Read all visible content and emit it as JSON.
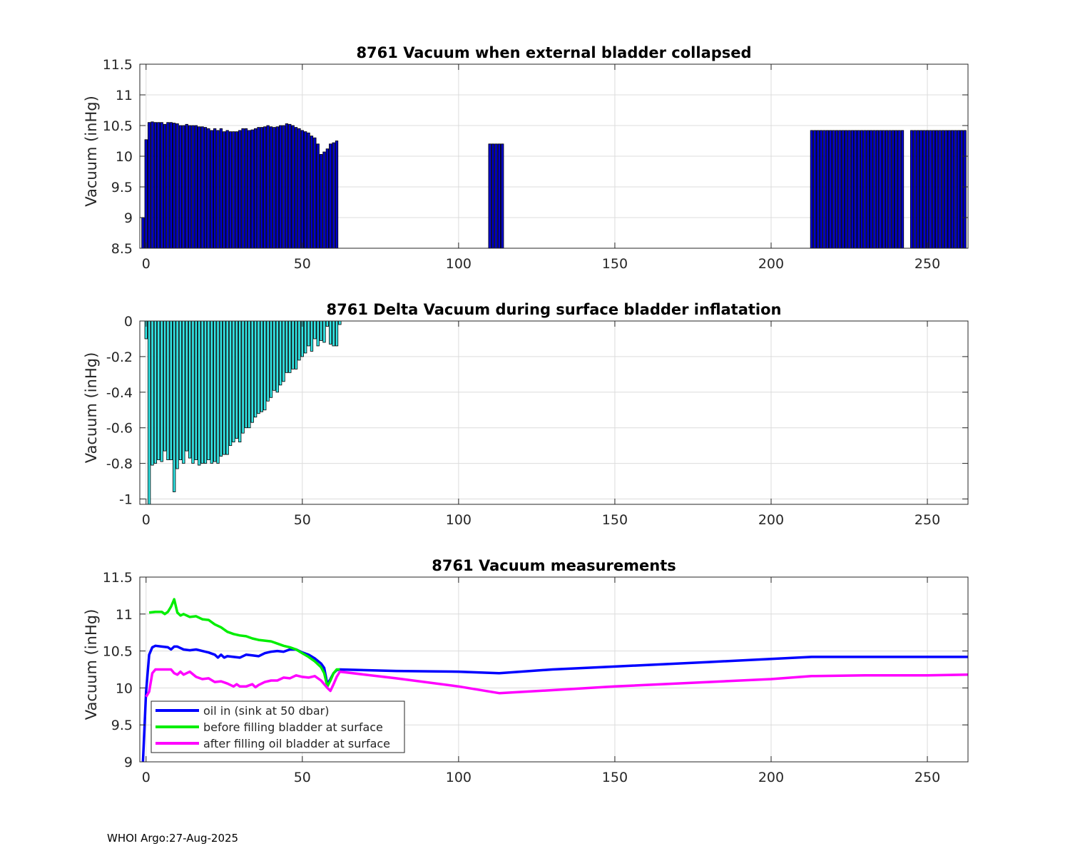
{
  "chart_data": [
    {
      "type": "bar",
      "title": "8761 Vacuum when external bladder collapsed",
      "xlabel": "",
      "ylabel": "Vacuum (inHg)",
      "xlim": [
        -2,
        263
      ],
      "ylim": [
        8.5,
        11.5
      ],
      "xticks": [
        0,
        50,
        100,
        150,
        200,
        250
      ],
      "yticks": [
        8.5,
        9,
        9.5,
        10,
        10.5,
        11,
        11.5
      ],
      "grid": true,
      "color": "#0000cc",
      "segments": [
        {
          "x_start": -1,
          "values": [
            9.0,
            10.27,
            10.55,
            10.56,
            10.55,
            10.55,
            10.55,
            10.52,
            10.55,
            10.55,
            10.54,
            10.53,
            10.5,
            10.5,
            10.52,
            10.5,
            10.5,
            10.5,
            10.48,
            10.48,
            10.47,
            10.45,
            10.42,
            10.45,
            10.42,
            10.45,
            10.4,
            10.42,
            10.4,
            10.4,
            10.4,
            10.42,
            10.45,
            10.45,
            10.42,
            10.43,
            10.45,
            10.47,
            10.47,
            10.48,
            10.5,
            10.48,
            10.47,
            10.48,
            10.5,
            10.5,
            10.53,
            10.52,
            10.5,
            10.47,
            10.45,
            10.42,
            10.4,
            10.38,
            10.33,
            10.3,
            10.2,
            10.03,
            10.07,
            10.12,
            10.2,
            10.22,
            10.25
          ]
        },
        {
          "x_start": 110,
          "values": [
            10.2,
            10.2,
            10.2,
            10.2,
            10.2
          ]
        },
        {
          "x_start": 213,
          "values": [
            10.42,
            10.42,
            10.42,
            10.42,
            10.42,
            10.42,
            10.42,
            10.42,
            10.42,
            10.42,
            10.42,
            10.42,
            10.42,
            10.42,
            10.42,
            10.42,
            10.42,
            10.42,
            10.42,
            10.42,
            10.42,
            10.42,
            10.42,
            10.42,
            10.42,
            10.42,
            10.42,
            10.42,
            10.42,
            10.42
          ]
        },
        {
          "x_start": 245,
          "values": [
            10.42,
            10.42,
            10.42,
            10.42,
            10.42,
            10.42,
            10.42,
            10.42,
            10.42,
            10.42,
            10.42,
            10.42,
            10.42,
            10.42,
            10.42,
            10.42,
            10.42,
            10.42
          ]
        }
      ]
    },
    {
      "type": "bar",
      "title": "8761 Delta Vacuum during surface bladder inflatation",
      "xlabel": "",
      "ylabel": "Vacuum (inHg)",
      "xlim": [
        -2,
        263
      ],
      "ylim": [
        -1.03,
        0
      ],
      "xticks": [
        0,
        50,
        100,
        150,
        200,
        250
      ],
      "yticks": [
        -1,
        -0.8,
        -0.6,
        -0.4,
        -0.2,
        0
      ],
      "ytick_labels": [
        "-1",
        "-0.8",
        "-0.6",
        "-0.4",
        "-0.2",
        "0"
      ],
      "grid": true,
      "color": "#33e6e6",
      "segments": [
        {
          "x_start": 0,
          "values": [
            -0.1,
            -1.03,
            -0.81,
            -0.8,
            -0.78,
            -0.79,
            -0.73,
            -0.78,
            -0.78,
            -0.96,
            -0.83,
            -0.78,
            -0.8,
            -0.73,
            -0.77,
            -0.8,
            -0.78,
            -0.81,
            -0.8,
            -0.8,
            -0.78,
            -0.8,
            -0.79,
            -0.8,
            -0.76,
            -0.75,
            -0.75,
            -0.7,
            -0.68,
            -0.66,
            -0.68,
            -0.63,
            -0.6,
            -0.6,
            -0.57,
            -0.54,
            -0.52,
            -0.51,
            -0.5,
            -0.45,
            -0.43,
            -0.39,
            -0.4,
            -0.36,
            -0.34,
            -0.29,
            -0.29,
            -0.27,
            -0.27,
            -0.22,
            -0.2,
            -0.18,
            -0.14,
            -0.17,
            -0.1,
            -0.14,
            -0.11,
            -0.12,
            -0.03,
            -0.13,
            -0.14,
            -0.14,
            -0.02
          ]
        }
      ]
    },
    {
      "type": "line",
      "title": "8761 Vacuum measurements",
      "xlabel": "",
      "ylabel": "Vacuum (inHg)",
      "xlim": [
        -2,
        263
      ],
      "ylim": [
        9,
        11.5
      ],
      "xticks": [
        0,
        50,
        100,
        150,
        200,
        250
      ],
      "yticks": [
        9,
        9.5,
        10,
        10.5,
        11,
        11.5
      ],
      "grid": true,
      "legend": "bottom-left",
      "series": [
        {
          "name": "oil in (sink at 50 dbar)",
          "color": "#0000ff",
          "points": [
            [
              -1,
              9.0
            ],
            [
              0,
              9.95
            ],
            [
              1,
              10.45
            ],
            [
              2,
              10.55
            ],
            [
              3,
              10.57
            ],
            [
              5,
              10.56
            ],
            [
              7,
              10.55
            ],
            [
              8,
              10.52
            ],
            [
              9,
              10.56
            ],
            [
              10,
              10.56
            ],
            [
              12,
              10.52
            ],
            [
              14,
              10.51
            ],
            [
              16,
              10.52
            ],
            [
              18,
              10.5
            ],
            [
              20,
              10.48
            ],
            [
              22,
              10.45
            ],
            [
              23,
              10.41
            ],
            [
              24,
              10.45
            ],
            [
              25,
              10.41
            ],
            [
              26,
              10.43
            ],
            [
              28,
              10.42
            ],
            [
              30,
              10.41
            ],
            [
              32,
              10.45
            ],
            [
              34,
              10.44
            ],
            [
              36,
              10.43
            ],
            [
              38,
              10.47
            ],
            [
              40,
              10.49
            ],
            [
              42,
              10.5
            ],
            [
              44,
              10.49
            ],
            [
              46,
              10.52
            ],
            [
              48,
              10.52
            ],
            [
              50,
              10.48
            ],
            [
              52,
              10.45
            ],
            [
              54,
              10.4
            ],
            [
              56,
              10.33
            ],
            [
              57,
              10.27
            ],
            [
              58,
              10.05
            ],
            [
              59,
              10.12
            ],
            [
              60,
              10.2
            ],
            [
              61,
              10.24
            ],
            [
              62,
              10.25
            ],
            [
              80,
              10.23
            ],
            [
              100,
              10.22
            ],
            [
              113,
              10.2
            ],
            [
              130,
              10.25
            ],
            [
              150,
              10.29
            ],
            [
              180,
              10.35
            ],
            [
              213,
              10.42
            ],
            [
              240,
              10.42
            ],
            [
              263,
              10.42
            ]
          ]
        },
        {
          "name": "before filling bladder at surface",
          "color": "#00ee00",
          "points": [
            [
              1,
              11.02
            ],
            [
              3,
              11.03
            ],
            [
              5,
              11.03
            ],
            [
              6,
              11.0
            ],
            [
              7,
              11.03
            ],
            [
              8,
              11.1
            ],
            [
              9,
              11.2
            ],
            [
              10,
              11.02
            ],
            [
              11,
              10.98
            ],
            [
              12,
              11.0
            ],
            [
              14,
              10.96
            ],
            [
              16,
              10.97
            ],
            [
              18,
              10.93
            ],
            [
              20,
              10.92
            ],
            [
              22,
              10.86
            ],
            [
              24,
              10.82
            ],
            [
              26,
              10.76
            ],
            [
              28,
              10.73
            ],
            [
              30,
              10.71
            ],
            [
              32,
              10.7
            ],
            [
              34,
              10.67
            ],
            [
              36,
              10.65
            ],
            [
              38,
              10.64
            ],
            [
              40,
              10.63
            ],
            [
              42,
              10.6
            ],
            [
              44,
              10.57
            ],
            [
              46,
              10.55
            ],
            [
              48,
              10.52
            ],
            [
              50,
              10.47
            ],
            [
              52,
              10.42
            ],
            [
              54,
              10.36
            ],
            [
              56,
              10.28
            ],
            [
              57,
              10.2
            ],
            [
              58,
              10.02
            ],
            [
              59,
              10.1
            ],
            [
              60,
              10.2
            ],
            [
              61,
              10.25
            ],
            [
              62,
              10.25
            ]
          ]
        },
        {
          "name": "after filling oil bladder at surface",
          "color": "#ff00ff",
          "points": [
            [
              0,
              9.88
            ],
            [
              1,
              9.95
            ],
            [
              2,
              10.2
            ],
            [
              3,
              10.25
            ],
            [
              5,
              10.25
            ],
            [
              8,
              10.25
            ],
            [
              9,
              10.2
            ],
            [
              10,
              10.18
            ],
            [
              11,
              10.22
            ],
            [
              12,
              10.18
            ],
            [
              14,
              10.22
            ],
            [
              16,
              10.15
            ],
            [
              18,
              10.12
            ],
            [
              20,
              10.13
            ],
            [
              22,
              10.08
            ],
            [
              24,
              10.09
            ],
            [
              26,
              10.06
            ],
            [
              28,
              10.02
            ],
            [
              29,
              10.05
            ],
            [
              30,
              10.02
            ],
            [
              32,
              10.02
            ],
            [
              34,
              10.05
            ],
            [
              35,
              10.01
            ],
            [
              36,
              10.04
            ],
            [
              38,
              10.08
            ],
            [
              40,
              10.1
            ],
            [
              42,
              10.1
            ],
            [
              44,
              10.14
            ],
            [
              46,
              10.13
            ],
            [
              48,
              10.17
            ],
            [
              50,
              10.15
            ],
            [
              52,
              10.14
            ],
            [
              54,
              10.16
            ],
            [
              56,
              10.1
            ],
            [
              58,
              10.0
            ],
            [
              59,
              9.96
            ],
            [
              60,
              10.05
            ],
            [
              61,
              10.15
            ],
            [
              62,
              10.22
            ],
            [
              80,
              10.13
            ],
            [
              100,
              10.02
            ],
            [
              113,
              9.93
            ],
            [
              130,
              9.97
            ],
            [
              150,
              10.02
            ],
            [
              180,
              10.08
            ],
            [
              200,
              10.12
            ],
            [
              213,
              10.16
            ],
            [
              230,
              10.17
            ],
            [
              250,
              10.17
            ],
            [
              263,
              10.18
            ]
          ]
        }
      ]
    }
  ],
  "footer": "WHOI Argo:27-Aug-2025"
}
